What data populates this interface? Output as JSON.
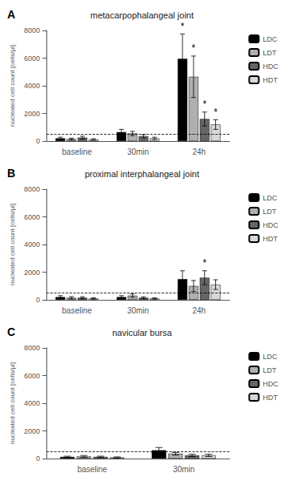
{
  "chart_data": [
    {
      "type": "bar",
      "title": "metacarpophalangeal joint",
      "panel_label": "A",
      "ylabel": "nucleated cell count [cells/µl]",
      "categories": [
        "baseline",
        "30min",
        "24h"
      ],
      "series": [
        {
          "name": "LDC",
          "color": "#000000",
          "values": [
            200,
            650,
            5950
          ],
          "errors": [
            80,
            200,
            1800
          ]
        },
        {
          "name": "LDT",
          "color": "#b0b0b0",
          "values": [
            150,
            550,
            4650
          ],
          "errors": [
            60,
            150,
            1500
          ]
        },
        {
          "name": "HDC",
          "color": "#666666",
          "values": [
            250,
            350,
            1600
          ],
          "errors": [
            100,
            120,
            500
          ]
        },
        {
          "name": "HDT",
          "color": "#d8d8d8",
          "values": [
            120,
            200,
            1200
          ],
          "errors": [
            50,
            80,
            350
          ]
        }
      ],
      "annotations": [
        {
          "text": "*",
          "category": "24h",
          "series": "LDC"
        },
        {
          "text": "*",
          "category": "24h",
          "series": "LDT"
        },
        {
          "text": "*",
          "category": "24h",
          "series": "HDC"
        },
        {
          "text": "*",
          "category": "24h",
          "series": "HDT"
        }
      ],
      "reference_lines": [
        {
          "y": 500,
          "line_style": "dashed"
        }
      ],
      "ylim": [
        0,
        8000
      ],
      "yticks": [
        0,
        2000,
        4000,
        6000,
        8000
      ],
      "grid": false,
      "legend": "right"
    },
    {
      "type": "bar",
      "title": "proximal interphalangeal joint",
      "panel_label": "B",
      "ylabel": "nucleated cell count [cells/µl]",
      "categories": [
        "baseline",
        "30min",
        "24h"
      ],
      "series": [
        {
          "name": "LDC",
          "color": "#000000",
          "values": [
            200,
            200,
            1500
          ],
          "errors": [
            100,
            100,
            600
          ]
        },
        {
          "name": "LDT",
          "color": "#b0b0b0",
          "values": [
            150,
            300,
            1000
          ],
          "errors": [
            80,
            120,
            400
          ]
        },
        {
          "name": "HDC",
          "color": "#666666",
          "values": [
            150,
            150,
            1600
          ],
          "errors": [
            70,
            70,
            500
          ]
        },
        {
          "name": "HDT",
          "color": "#d8d8d8",
          "values": [
            100,
            100,
            1100
          ],
          "errors": [
            50,
            50,
            350
          ]
        }
      ],
      "annotations": [
        {
          "text": "*",
          "category": "24h",
          "series": "HDC"
        }
      ],
      "reference_lines": [
        {
          "y": 500,
          "line_style": "dashed"
        }
      ],
      "ylim": [
        0,
        8000
      ],
      "yticks": [
        0,
        2000,
        4000,
        6000,
        8000
      ],
      "grid": false,
      "legend": "right"
    },
    {
      "type": "bar",
      "title": "navicular bursa",
      "panel_label": "C",
      "ylabel": "nucleated cell count [cells/µl]",
      "categories": [
        "baseline",
        "30min"
      ],
      "series": [
        {
          "name": "LDC",
          "color": "#000000",
          "values": [
            120,
            600
          ],
          "errors": [
            50,
            200
          ]
        },
        {
          "name": "LDT",
          "color": "#b0b0b0",
          "values": [
            150,
            350
          ],
          "errors": [
            70,
            100
          ]
        },
        {
          "name": "HDC",
          "color": "#666666",
          "values": [
            120,
            230
          ],
          "errors": [
            50,
            80
          ]
        },
        {
          "name": "HDT",
          "color": "#d8d8d8",
          "values": [
            80,
            230
          ],
          "errors": [
            40,
            80
          ]
        }
      ],
      "reference_lines": [
        {
          "y": 500,
          "line_style": "dashed"
        }
      ],
      "ylim": [
        0,
        8000
      ],
      "yticks": [
        0,
        2000,
        4000,
        6000,
        8000
      ],
      "grid": false,
      "legend": "right"
    }
  ]
}
